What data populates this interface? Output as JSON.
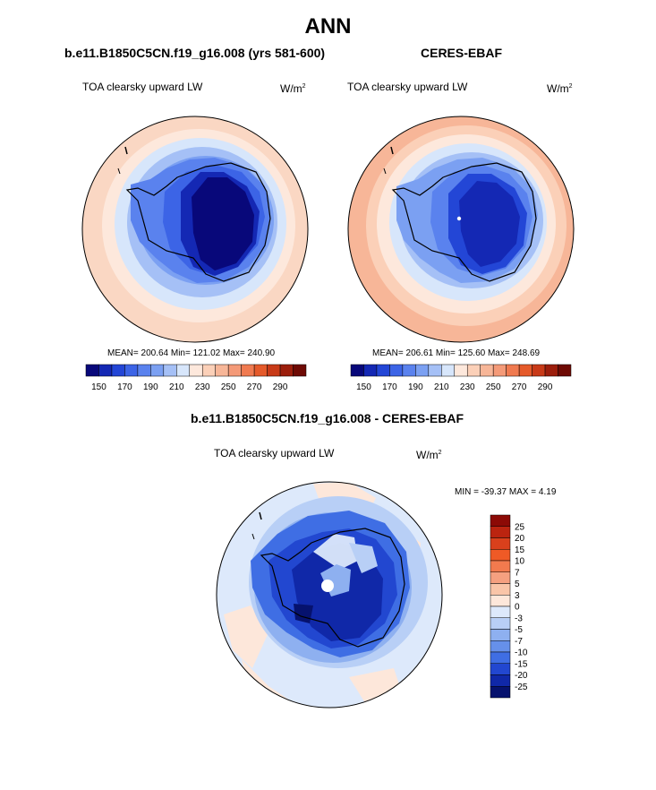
{
  "figure": {
    "title": "ANN",
    "panel_left": {
      "case": "b.e11.B1850C5CN.f19_g16.008 (yrs 581-600)",
      "variable": "TOA clearsky upward LW",
      "units": "W/m",
      "units_exp": "2",
      "stats": "MEAN= 200.64  Min= 121.02  Max= 240.90"
    },
    "panel_right": {
      "case": "CERES-EBAF",
      "variable": "TOA clearsky upward LW",
      "units": "W/m",
      "units_exp": "2",
      "stats": "MEAN= 206.61  Min= 125.60  Max= 248.69"
    },
    "panel_diff": {
      "case": "b.e11.B1850C5CN.f19_g16.008 - CERES-EBAF",
      "variable": "TOA clearsky upward LW",
      "units": "W/m",
      "units_exp": "2",
      "stats": "MIN = -39.37 MAX =   4.19"
    },
    "colorbar_main": {
      "ticks": [
        "150",
        "170",
        "190",
        "210",
        "230",
        "250",
        "270",
        "290"
      ],
      "colors": [
        "#08087a",
        "#1428b4",
        "#2346d6",
        "#3c64e6",
        "#5a82ee",
        "#7ba0f2",
        "#a5c0f6",
        "#d7e6fb",
        "#fde8dc",
        "#fbd0b8",
        "#f7b698",
        "#f49a78",
        "#f07a50",
        "#e55a2a",
        "#c83a18",
        "#9c1e0c",
        "#6e0a04"
      ]
    },
    "colorbar_diff": {
      "ticks": [
        "25",
        "20",
        "15",
        "10",
        "7",
        "5",
        "3",
        "0",
        "-3",
        "-5",
        "-7",
        "-10",
        "-15",
        "-20",
        "-25"
      ],
      "colors": [
        "#8c0a06",
        "#bb2410",
        "#d9401c",
        "#ef5a26",
        "#f27a4e",
        "#f5a080",
        "#f9c5a8",
        "#fde7da",
        "#dde9fb",
        "#b8cff6",
        "#8eb0f0",
        "#6690ea",
        "#3f6ee4",
        "#2247d0",
        "#1028a8",
        "#06126e"
      ]
    }
  },
  "map_data": {
    "projection": "south polar stereographic",
    "region": "Antarctica and Southern Ocean"
  }
}
